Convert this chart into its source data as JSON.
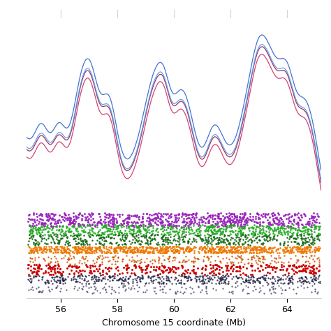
{
  "x_min": 54.8,
  "x_max": 65.2,
  "xlabel": "Chromosome 15 coordinate (Mb)",
  "xticks": [
    56,
    58,
    60,
    62,
    64
  ],
  "line_colors": [
    "#3366cc",
    "#5599ee",
    "#992244",
    "#cc3366"
  ],
  "dot_rows": [
    {
      "color": "#9922bb",
      "density": 0.88,
      "size": 2.2,
      "vary": 0.08
    },
    {
      "color": "#22aa22",
      "density": 0.72,
      "size": 1.9,
      "vary": 0.06
    },
    {
      "color": "#116611",
      "density": 0.62,
      "size": 1.7,
      "vary": 0.06
    },
    {
      "color": "#ee7700",
      "density": 0.96,
      "size": 1.9,
      "vary": 0.04
    },
    {
      "color": "#cc5500",
      "density": 0.28,
      "size": 1.4,
      "vary": 0.05
    },
    {
      "color": "#cc0000",
      "density": 0.42,
      "size": 2.4,
      "vary": 0.06
    },
    {
      "color": "#222244",
      "density": 0.58,
      "size": 1.4,
      "vary": 0.05
    },
    {
      "color": "#444466",
      "density": 0.18,
      "size": 1.2,
      "vary": 0.05
    }
  ],
  "background_color": "#ffffff"
}
